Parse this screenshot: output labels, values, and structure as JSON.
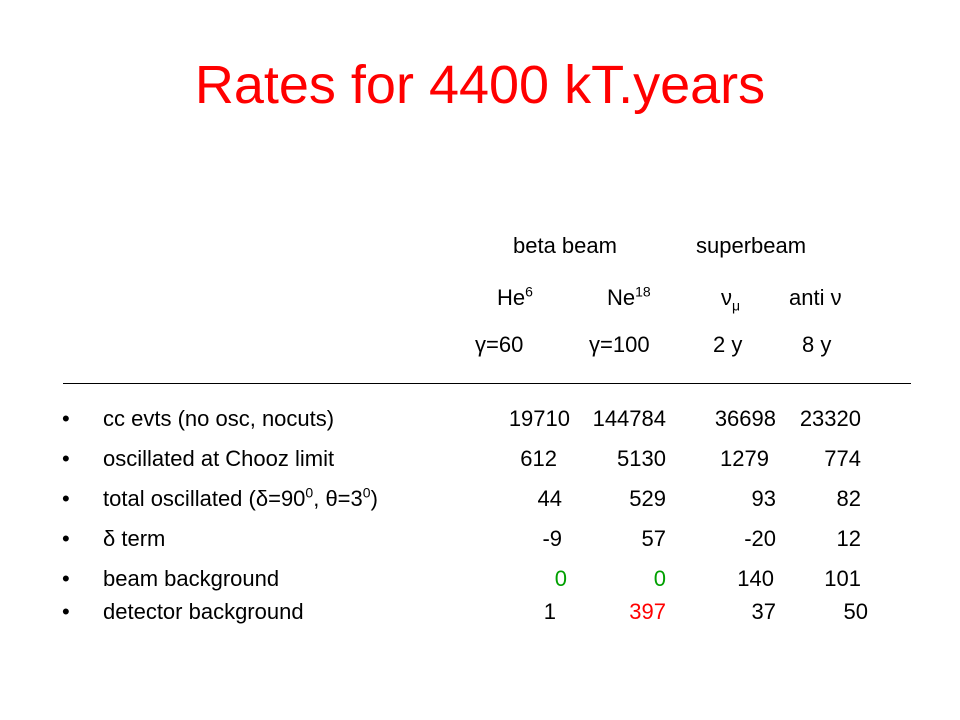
{
  "title": "Rates for 4400 kT.years",
  "header": {
    "group_beta": "beta beam",
    "group_super": "superbeam",
    "col1_base": "He",
    "col1_sup": "6",
    "col2_base": "Ne",
    "col2_sup": "18",
    "col3_base": "ν",
    "col3_sub": "μ",
    "col4": "anti ν",
    "gamma1": "γ=60",
    "gamma2": "γ=100",
    "years1": "2 y",
    "years2": "8 y"
  },
  "rows": [
    {
      "bullet": "•",
      "label": "cc evts (no osc, nocuts)",
      "values": [
        "19710",
        "144784",
        "36698",
        "23320"
      ]
    },
    {
      "bullet": "•",
      "label": "oscillated at Chooz limit",
      "values": [
        "612",
        "5130",
        "1279",
        "774"
      ]
    },
    {
      "bullet": "•",
      "label_a": "total oscillated (δ=90",
      "label_sup1": "0",
      "label_b": ", θ=3",
      "label_sup2": "0",
      "label_c": ")",
      "values": [
        "44",
        "529",
        "93",
        "82"
      ]
    },
    {
      "bullet": "•",
      "label": "δ term",
      "values": [
        "-9",
        "57",
        "-20",
        "12"
      ]
    },
    {
      "bullet": "•",
      "label": "beam background",
      "values": [
        "0",
        "0",
        "140",
        "101"
      ]
    },
    {
      "bullet": "•",
      "label": "detector background",
      "values": [
        "1",
        "397",
        "37",
        "50"
      ]
    }
  ],
  "colors": {
    "title": "#ff0000",
    "green": "#00a000",
    "red": "#ff0000",
    "text": "#000000"
  }
}
